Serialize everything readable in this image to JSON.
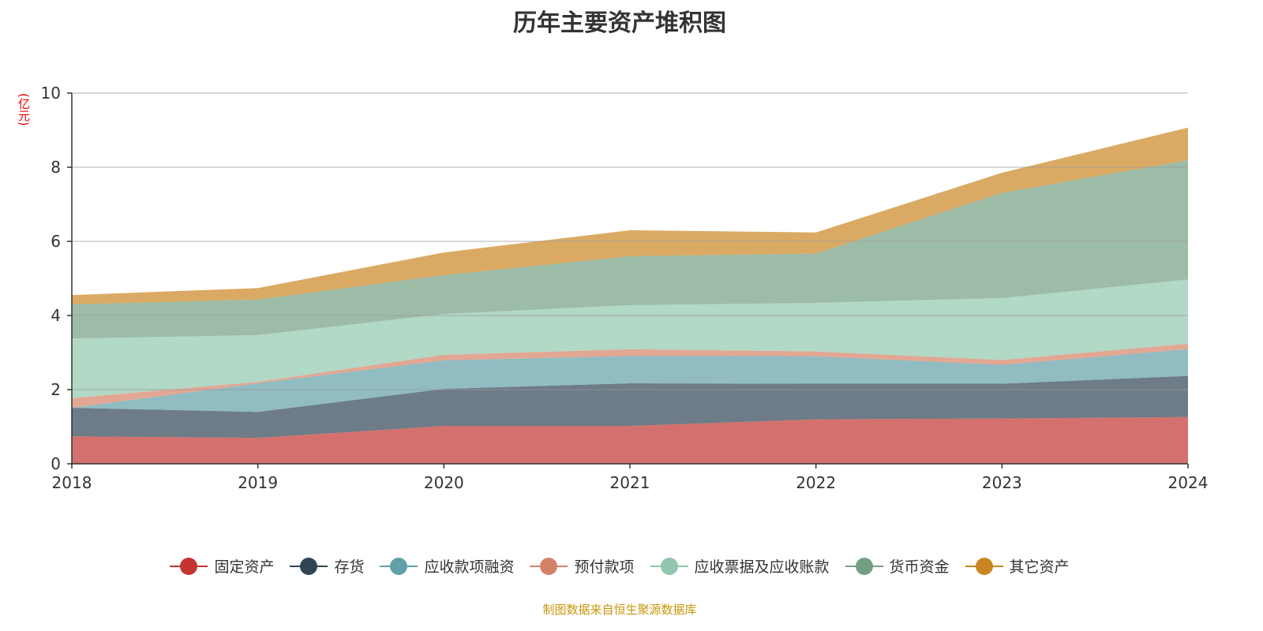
{
  "chart_data": {
    "type": "area",
    "stacked": true,
    "title": "历年主要资产堆积图",
    "ylabel": "(亿元)",
    "xlabel": "",
    "x": [
      "2018",
      "2019",
      "2020",
      "2021",
      "2022",
      "2023",
      "2024"
    ],
    "ylim": [
      0,
      10
    ],
    "yticks": [
      0,
      2,
      4,
      6,
      8,
      10
    ],
    "grid": true,
    "legend_position": "bottom",
    "series": [
      {
        "name": "固定资产",
        "color": "#c23531",
        "values": [
          0.74,
          0.7,
          1.02,
          1.02,
          1.2,
          1.22,
          1.26
        ]
      },
      {
        "name": "存货",
        "color": "#2f4554",
        "values": [
          0.77,
          0.7,
          1.0,
          1.15,
          0.96,
          0.94,
          1.11
        ]
      },
      {
        "name": "应收款项融资",
        "color": "#61a0a8",
        "values": [
          0.0,
          0.77,
          0.77,
          0.74,
          0.74,
          0.51,
          0.72
        ]
      },
      {
        "name": "预付款项",
        "color": "#d48265",
        "values": [
          0.26,
          0.04,
          0.15,
          0.18,
          0.13,
          0.13,
          0.15
        ]
      },
      {
        "name": "应收票据及应收账款",
        "color": "#91c7ae",
        "values": [
          1.61,
          1.26,
          1.1,
          1.19,
          1.31,
          1.67,
          1.73
        ]
      },
      {
        "name": "货币资金",
        "color": "#749f83",
        "values": [
          0.92,
          0.96,
          1.05,
          1.32,
          1.33,
          2.84,
          3.22
        ]
      },
      {
        "name": "其它资产",
        "color": "#ca8622",
        "values": [
          0.25,
          0.31,
          0.61,
          0.7,
          0.57,
          0.54,
          0.88
        ]
      }
    ]
  },
  "footer": "制图数据来自恒生聚源数据库"
}
